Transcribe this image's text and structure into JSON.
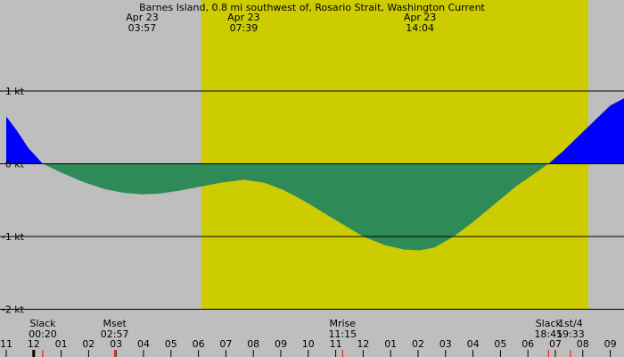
{
  "chart_data": {
    "type": "area",
    "title": "Barnes Island, 0.8 mi southwest of, Rosario Strait, Washington Current",
    "x_unit": "hour of day (Apr 22 23:00 to Apr 23 09:00)",
    "y_unit": "kt",
    "ylim": [
      -2,
      1
    ],
    "xlim": [
      11,
      33.5
    ],
    "y_ticks": [
      {
        "value": 1,
        "label": "1 kt"
      },
      {
        "value": 0,
        "label": "0 kt"
      },
      {
        "value": -1,
        "label": "-1 kt"
      },
      {
        "value": -2,
        "label": "-2 kt"
      }
    ],
    "x_ticks": [
      {
        "hour": 11,
        "label": "11"
      },
      {
        "hour": 12,
        "label": "12"
      },
      {
        "hour": 13,
        "label": "01"
      },
      {
        "hour": 14,
        "label": "02"
      },
      {
        "hour": 15,
        "label": "03"
      },
      {
        "hour": 16,
        "label": "04"
      },
      {
        "hour": 17,
        "label": "05"
      },
      {
        "hour": 18,
        "label": "06"
      },
      {
        "hour": 19,
        "label": "07"
      },
      {
        "hour": 20,
        "label": "08"
      },
      {
        "hour": 21,
        "label": "09"
      },
      {
        "hour": 22,
        "label": "10"
      },
      {
        "hour": 23,
        "label": "11"
      },
      {
        "hour": 24,
        "label": "12"
      },
      {
        "hour": 25,
        "label": "01"
      },
      {
        "hour": 26,
        "label": "02"
      },
      {
        "hour": 27,
        "label": "03"
      },
      {
        "hour": 28,
        "label": "04"
      },
      {
        "hour": 29,
        "label": "05"
      },
      {
        "hour": 30,
        "label": "06"
      },
      {
        "hour": 31,
        "label": "07"
      },
      {
        "hour": 32,
        "label": "08"
      },
      {
        "hour": 33,
        "label": "09"
      }
    ],
    "daylight": {
      "start_hour": 18.1,
      "end_hour": 32.2
    },
    "top_events": [
      {
        "hour": 15.95,
        "date": "Apr 23",
        "time": "03:57"
      },
      {
        "hour": 19.65,
        "date": "Apr 23",
        "time": "07:39"
      },
      {
        "hour": 26.07,
        "date": "Apr 23",
        "time": "14:04"
      }
    ],
    "bottom_events": [
      {
        "hour": 12.33,
        "label": "Slack",
        "time": "00:20"
      },
      {
        "hour": 14.95,
        "label": "Mset",
        "time": "02:57"
      },
      {
        "hour": 23.25,
        "label": "Mrise",
        "time": "11:15"
      },
      {
        "hour": 30.75,
        "label": "Slack",
        "time": "18:45"
      },
      {
        "hour": 31.55,
        "label": "1st/4",
        "time": "19:33"
      }
    ],
    "marker_hours": [
      12.33,
      14.95,
      23.25,
      30.75,
      31.55
    ],
    "series": [
      {
        "x": [
          11,
          11.4,
          11.8,
          12.33,
          13,
          13.8,
          14.6,
          15.3,
          15.95,
          16.6,
          17.3,
          18.0,
          18.8,
          19.65,
          20.4,
          21.1,
          21.8,
          22.5,
          23.2,
          24.0,
          24.8,
          25.5,
          26.07,
          26.6,
          27.3,
          28.0,
          28.8,
          29.6,
          30.3,
          30.75,
          31.3,
          31.9,
          32.5,
          33.0,
          33.5
        ],
        "values": [
          0.65,
          0.45,
          0.22,
          0,
          -0.12,
          -0.25,
          -0.35,
          -0.4,
          -0.42,
          -0.41,
          -0.37,
          -0.32,
          -0.26,
          -0.22,
          -0.26,
          -0.36,
          -0.5,
          -0.66,
          -0.82,
          -1.0,
          -1.12,
          -1.18,
          -1.19,
          -1.15,
          -1.0,
          -0.8,
          -0.55,
          -0.3,
          -0.12,
          0,
          0.18,
          0.4,
          0.62,
          0.8,
          0.9
        ]
      }
    ]
  }
}
